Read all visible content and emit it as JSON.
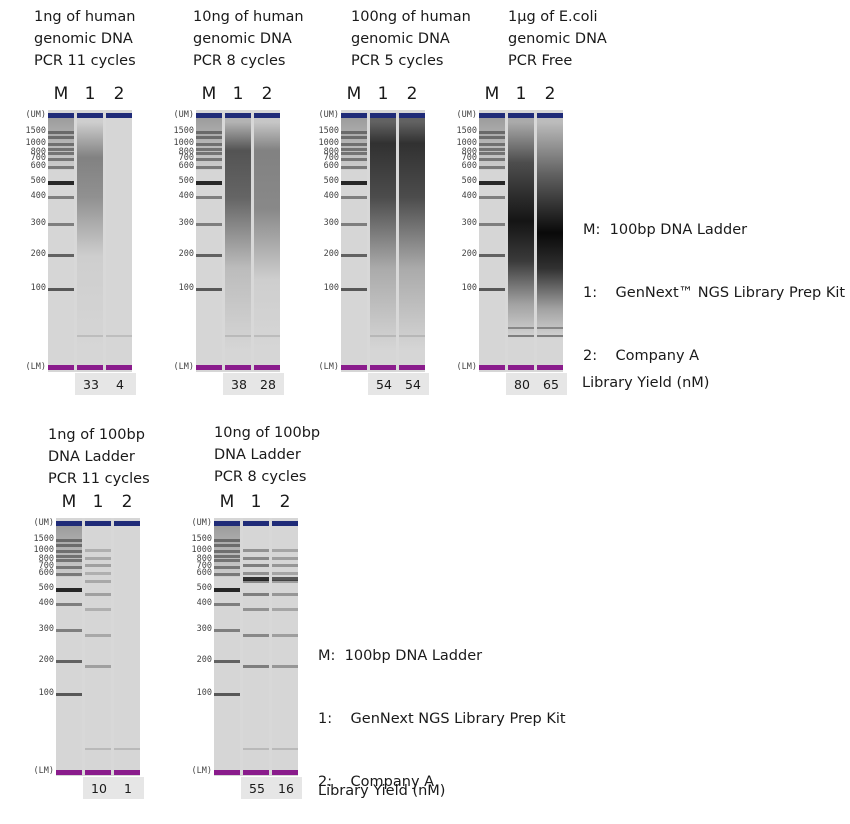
{
  "panels_top": [
    {
      "caption": "1ng of human\ngenomic DNA\nPCR 11 cycles",
      "lanes": [
        "M",
        "1",
        "2"
      ],
      "yields": [
        "33",
        "4"
      ]
    },
    {
      "caption": "10ng of human\ngenomic DNA\nPCR 8 cycles",
      "lanes": [
        "M",
        "1",
        "2"
      ],
      "yields": [
        "38",
        "28"
      ]
    },
    {
      "caption": "100ng of human\ngenomic DNA\nPCR 5 cycles",
      "lanes": [
        "M",
        "1",
        "2"
      ],
      "yields": [
        "54",
        "54"
      ]
    },
    {
      "caption": "1µg of E.coli\ngenomic DNA\nPCR Free",
      "lanes": [
        "M",
        "1",
        "2"
      ],
      "yields": [
        "80",
        "65"
      ]
    }
  ],
  "panels_bottom": [
    {
      "caption": "1ng of 100bp\nDNA Ladder\nPCR 11 cycles",
      "lanes": [
        "M",
        "1",
        "2"
      ],
      "yields": [
        "10",
        "1"
      ]
    },
    {
      "caption": "10ng of 100bp\nDNA Ladder\nPCR 8 cycles",
      "lanes": [
        "M",
        "1",
        "2"
      ],
      "yields": [
        "55",
        "16"
      ]
    }
  ],
  "ladder_labels": [
    "(UM)",
    "1500",
    "1000",
    "800",
    "700",
    "600",
    "500",
    "400",
    "300",
    "200",
    "100",
    "(LM)"
  ],
  "legend_top": {
    "m": "M:  100bp DNA Ladder",
    "l1": "1:    GenNext™ NGS Library Prep Kit",
    "l2": "2:    Company A"
  },
  "legend_bottom": {
    "m": "M:  100bp DNA Ladder",
    "l1": "1:    GenNext NGS Library Prep Kit",
    "l2": "2:    Company A"
  },
  "yield_label_top": "Library Yield (nM)",
  "yield_label_bottom": "Library Yield (nM)",
  "colors": {
    "upper_marker": "#1f2b78",
    "lower_marker": "#8a1c8c",
    "gel_bg": "#d8d8d8"
  }
}
